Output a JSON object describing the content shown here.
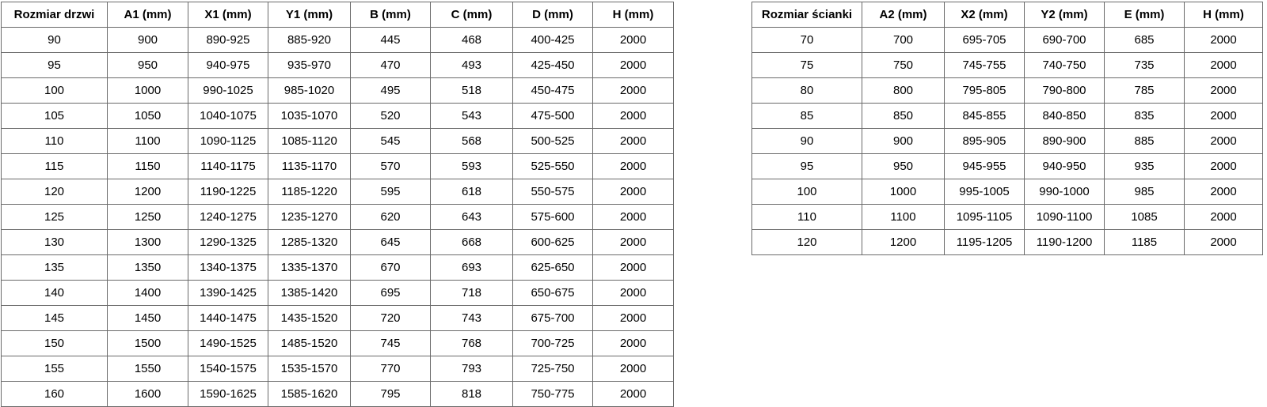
{
  "door_table": {
    "headers": [
      "Rozmiar drzwi",
      "A1 (mm)",
      "X1 (mm)",
      "Y1 (mm)",
      "B (mm)",
      "C (mm)",
      "D (mm)",
      "H (mm)"
    ],
    "rows": [
      [
        "90",
        "900",
        "890-925",
        "885-920",
        "445",
        "468",
        "400-425",
        "2000"
      ],
      [
        "95",
        "950",
        "940-975",
        "935-970",
        "470",
        "493",
        "425-450",
        "2000"
      ],
      [
        "100",
        "1000",
        "990-1025",
        "985-1020",
        "495",
        "518",
        "450-475",
        "2000"
      ],
      [
        "105",
        "1050",
        "1040-1075",
        "1035-1070",
        "520",
        "543",
        "475-500",
        "2000"
      ],
      [
        "110",
        "1100",
        "1090-1125",
        "1085-1120",
        "545",
        "568",
        "500-525",
        "2000"
      ],
      [
        "115",
        "1150",
        "1140-1175",
        "1135-1170",
        "570",
        "593",
        "525-550",
        "2000"
      ],
      [
        "120",
        "1200",
        "1190-1225",
        "1185-1220",
        "595",
        "618",
        "550-575",
        "2000"
      ],
      [
        "125",
        "1250",
        "1240-1275",
        "1235-1270",
        "620",
        "643",
        "575-600",
        "2000"
      ],
      [
        "130",
        "1300",
        "1290-1325",
        "1285-1320",
        "645",
        "668",
        "600-625",
        "2000"
      ],
      [
        "135",
        "1350",
        "1340-1375",
        "1335-1370",
        "670",
        "693",
        "625-650",
        "2000"
      ],
      [
        "140",
        "1400",
        "1390-1425",
        "1385-1420",
        "695",
        "718",
        "650-675",
        "2000"
      ],
      [
        "145",
        "1450",
        "1440-1475",
        "1435-1520",
        "720",
        "743",
        "675-700",
        "2000"
      ],
      [
        "150",
        "1500",
        "1490-1525",
        "1485-1520",
        "745",
        "768",
        "700-725",
        "2000"
      ],
      [
        "155",
        "1550",
        "1540-1575",
        "1535-1570",
        "770",
        "793",
        "725-750",
        "2000"
      ],
      [
        "160",
        "1600",
        "1590-1625",
        "1585-1620",
        "795",
        "818",
        "750-775",
        "2000"
      ]
    ]
  },
  "wall_table": {
    "headers": [
      "Rozmiar ścianki",
      "A2 (mm)",
      "X2 (mm)",
      "Y2 (mm)",
      "E (mm)",
      "H (mm)"
    ],
    "rows": [
      [
        "70",
        "700",
        "695-705",
        "690-700",
        "685",
        "2000"
      ],
      [
        "75",
        "750",
        "745-755",
        "740-750",
        "735",
        "2000"
      ],
      [
        "80",
        "800",
        "795-805",
        "790-800",
        "785",
        "2000"
      ],
      [
        "85",
        "850",
        "845-855",
        "840-850",
        "835",
        "2000"
      ],
      [
        "90",
        "900",
        "895-905",
        "890-900",
        "885",
        "2000"
      ],
      [
        "95",
        "950",
        "945-955",
        "940-950",
        "935",
        "2000"
      ],
      [
        "100",
        "1000",
        "995-1005",
        "990-1000",
        "985",
        "2000"
      ],
      [
        "110",
        "1100",
        "1095-1105",
        "1090-1100",
        "1085",
        "2000"
      ],
      [
        "120",
        "1200",
        "1195-1205",
        "1190-1200",
        "1185",
        "2000"
      ]
    ]
  },
  "colors": {
    "border": "#6a6a6a",
    "text": "#000000",
    "background": "#ffffff"
  }
}
